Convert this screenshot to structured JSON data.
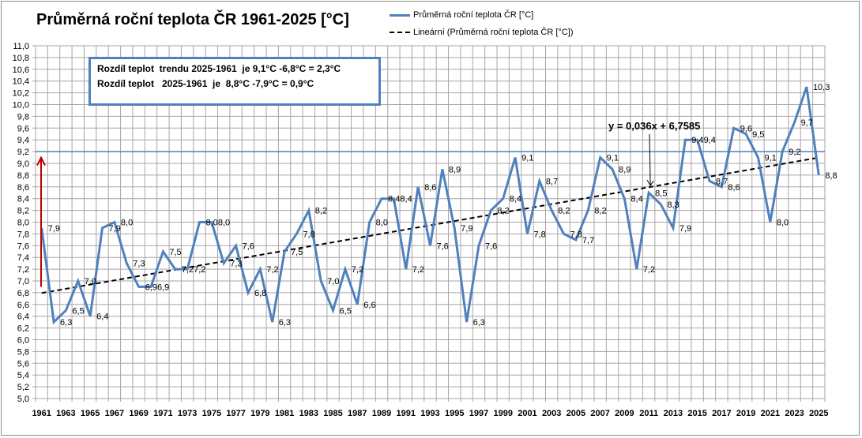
{
  "chart_data": {
    "type": "line",
    "title": "Průměrná roční teplota ČR 1961-2025 [°C]",
    "xlabel": "",
    "ylabel": "",
    "ylim": [
      5.0,
      11.0
    ],
    "ytick_step": 0.2,
    "grid": true,
    "legend_position": "top-right",
    "categories": [
      "1961",
      "1962",
      "1963",
      "1964",
      "1965",
      "1966",
      "1967",
      "1968",
      "1969",
      "1970",
      "1971",
      "1972",
      "1973",
      "1974",
      "1975",
      "1976",
      "1977",
      "1978",
      "1979",
      "1980",
      "1981",
      "1982",
      "1983",
      "1984",
      "1985",
      "1986",
      "1987",
      "1988",
      "1989",
      "1990",
      "1991",
      "1992",
      "1993",
      "1994",
      "1995",
      "1996",
      "1997",
      "1998",
      "1999",
      "2000",
      "2001",
      "2002",
      "2003",
      "2004",
      "2005",
      "2006",
      "2007",
      "2008",
      "2009",
      "2010",
      "2011",
      "2012",
      "2013",
      "2014",
      "2015",
      "2016",
      "2017",
      "2018",
      "2019",
      "2020",
      "2021",
      "2022",
      "2023",
      "2024",
      "2025"
    ],
    "x_tick_labels": [
      "1961",
      "1963",
      "1965",
      "1967",
      "1969",
      "1971",
      "1973",
      "1975",
      "1977",
      "1979",
      "1981",
      "1983",
      "1985",
      "1987",
      "1989",
      "1991",
      "1993",
      "1995",
      "1997",
      "1999",
      "2001",
      "2003",
      "2005",
      "2007",
      "2009",
      "2011",
      "2013",
      "2015",
      "2017",
      "2019",
      "2021",
      "2023",
      "2025"
    ],
    "series": [
      {
        "name": "Průměrná roční teplota ČR [°C]",
        "color": "#4f81bd",
        "values": [
          7.9,
          6.3,
          6.5,
          7.0,
          6.4,
          7.9,
          8.0,
          7.3,
          6.9,
          6.9,
          7.5,
          7.2,
          7.2,
          8.0,
          8.0,
          7.3,
          7.6,
          6.8,
          7.2,
          6.3,
          7.5,
          7.8,
          8.2,
          7.0,
          6.5,
          7.2,
          6.6,
          8.0,
          8.4,
          8.4,
          7.2,
          8.6,
          7.6,
          8.9,
          7.9,
          6.3,
          7.6,
          8.2,
          8.4,
          9.1,
          7.8,
          8.7,
          8.2,
          7.8,
          7.7,
          8.2,
          9.1,
          8.9,
          8.4,
          7.2,
          8.5,
          8.3,
          7.9,
          9.4,
          9.4,
          8.7,
          8.6,
          9.6,
          9.5,
          9.1,
          8.0,
          9.2,
          9.7,
          10.3,
          8.8
        ]
      }
    ],
    "trendline": {
      "name": "Lineární (Průměrná roční teplota ČR [°C])",
      "type": "linear",
      "slope": 0.036,
      "intercept": 6.7585,
      "equation_label": "y = 0,036x + 6,7585",
      "color": "#000000"
    },
    "annotations": {
      "reference_line_value": 9.2,
      "reference_line_color": "#4f81bd",
      "arrow_from": 6.9,
      "arrow_to": 9.1,
      "arrow_color": "#c00000"
    },
    "info_lines": [
      "Rozdíl teplot  trendu 2025-1961  je 9,1°C -6,8°C = 2,3°C",
      "Rozdíl teplot   2025-1961  je  8,8°C -7,9°C = 0,9°C"
    ]
  },
  "legend": {
    "items": [
      {
        "label": "Průměrná roční teplota ČR [°C]",
        "style": "solid"
      },
      {
        "label": "Lineární (Průměrná roční teplota ČR [°C])",
        "style": "dashed"
      }
    ]
  }
}
